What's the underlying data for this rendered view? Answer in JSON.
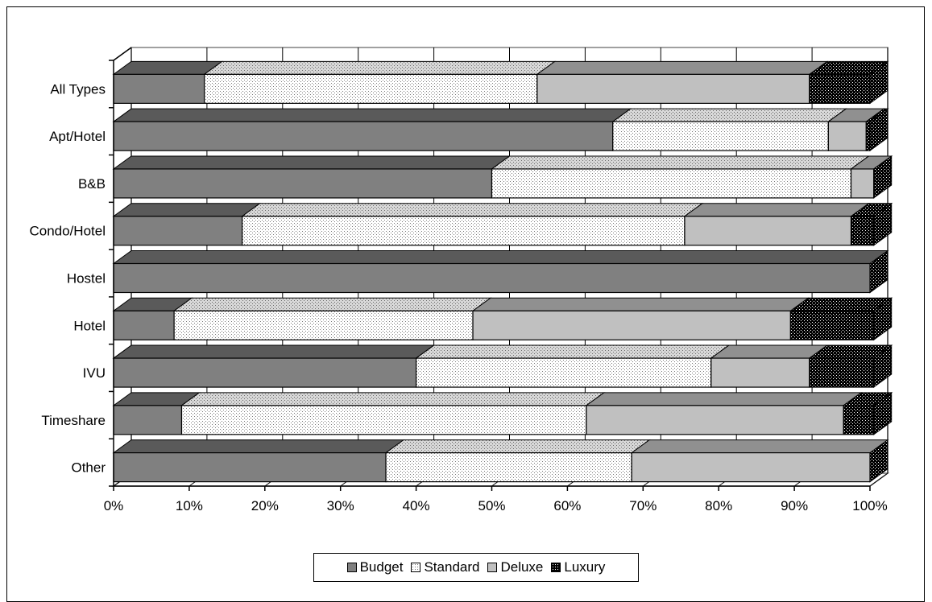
{
  "chart_data": {
    "type": "bar",
    "orientation": "horizontal",
    "stacked": "percent",
    "categories": [
      "All Types",
      "Apt/Hotel",
      "B&B",
      "Condo/Hotel",
      "Hostel",
      "Hotel",
      "IVU",
      "Timeshare",
      "Other"
    ],
    "series": [
      {
        "name": "Budget",
        "color": "#808080",
        "pattern": "solid",
        "values": [
          12,
          66,
          50,
          17,
          100,
          8,
          40,
          9,
          36
        ]
      },
      {
        "name": "Standard",
        "color": "#ffffff",
        "pattern": "light-dots",
        "values": [
          44,
          28.5,
          47.5,
          58.5,
          0,
          39.5,
          39,
          53.5,
          32.5
        ]
      },
      {
        "name": "Deluxe",
        "color": "#c0c0c0",
        "pattern": "solid",
        "values": [
          36,
          5,
          3,
          22,
          0,
          42,
          13,
          34,
          31.5
        ]
      },
      {
        "name": "Luxury",
        "color": "#000000",
        "pattern": "dense-dots",
        "values": [
          8,
          0.5,
          0,
          3,
          0,
          11,
          8.5,
          4,
          0
        ]
      }
    ],
    "xlim": [
      0,
      100
    ],
    "x_ticks": [
      "0%",
      "10%",
      "20%",
      "30%",
      "40%",
      "50%",
      "60%",
      "70%",
      "80%",
      "90%",
      "100%"
    ],
    "grid": "vertical",
    "three_d": true,
    "legend": "bottom"
  }
}
